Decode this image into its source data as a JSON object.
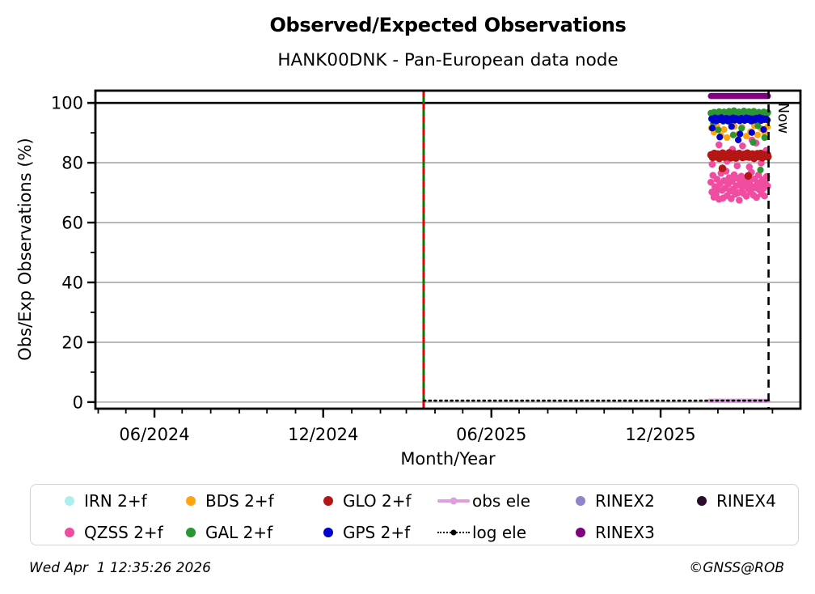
{
  "footer": {
    "timestamp": "Wed Apr  1 12:35:26 2026",
    "copyright": "©GNSS@ROB"
  },
  "chart_data": {
    "type": "scatter",
    "title": "Observed/Expected Observations",
    "subtitle": "HANK00DNK - Pan-European data node",
    "xlabel": "Month/Year",
    "ylabel": "Obs/Exp Observations (%)",
    "x_range": [
      2024.2403,
      2026.3295
    ],
    "y_range": [
      -2.2,
      104.1
    ],
    "x_ticks": [
      {
        "v": 2024.4153,
        "label": "06/2024"
      },
      {
        "v": 2024.9153,
        "label": "12/2024"
      },
      {
        "v": 2025.4137,
        "label": "06/2025"
      },
      {
        "v": 2025.9151,
        "label": "12/2025"
      }
    ],
    "x_minor_ticks": [
      2024.2486,
      2024.3306,
      2024.4973,
      2024.582,
      2024.6667,
      2024.7486,
      2024.8333,
      2025.0,
      2025.0849,
      2025.1616,
      2025.2466,
      2025.3288,
      2025.4959,
      2025.5808,
      2025.6658,
      2025.7479,
      2025.8329,
      2026.0,
      2026.0849,
      2026.1616,
      2026.2466
    ],
    "y_ticks": [
      0,
      20,
      40,
      60,
      80,
      100
    ],
    "y_minor_ticks": [
      10,
      30,
      50,
      70,
      90
    ],
    "grid_color": "#a6a6a6",
    "annotations": {
      "now_label": "Now",
      "now_line_x": 2026.235,
      "event_line_x": 2025.213,
      "event_line_colors": [
        "#007d00",
        "#e8000b"
      ],
      "ref_line_y": 100
    },
    "series": [
      {
        "name": "IRN 2+f",
        "color": "#afeeee",
        "marker": "dot",
        "points": []
      },
      {
        "name": "QZSS 2+f",
        "color": "#f04da1",
        "marker": "dot",
        "r": 4.3,
        "points": [
          [
            2026.0642,
            73.5
          ],
          [
            2026.0672,
            70.2
          ],
          [
            2026.0702,
            75.8
          ],
          [
            2026.0732,
            68.5
          ],
          [
            2026.0762,
            72.0
          ],
          [
            2026.0792,
            69.3
          ],
          [
            2026.0822,
            74.5
          ],
          [
            2026.0852,
            71.0
          ],
          [
            2026.0882,
            67.8
          ],
          [
            2026.0912,
            73.0
          ],
          [
            2026.0942,
            76.5
          ],
          [
            2026.0972,
            70.8
          ],
          [
            2026.1002,
            68.2
          ],
          [
            2026.1032,
            74.0
          ],
          [
            2026.1062,
            71.5
          ],
          [
            2026.1092,
            77.2
          ],
          [
            2026.1122,
            69.0
          ],
          [
            2026.1152,
            72.8
          ],
          [
            2026.1182,
            75.0
          ],
          [
            2026.1212,
            70.5
          ],
          [
            2026.1242,
            68.0
          ],
          [
            2026.1272,
            73.8
          ],
          [
            2026.1302,
            71.2
          ],
          [
            2026.1332,
            76.0
          ],
          [
            2026.1362,
            69.5
          ],
          [
            2026.1392,
            72.3
          ],
          [
            2026.1422,
            74.8
          ],
          [
            2026.1452,
            70.0
          ],
          [
            2026.1482,
            67.5
          ],
          [
            2026.1512,
            73.2
          ],
          [
            2026.1542,
            75.5
          ],
          [
            2026.1572,
            71.8
          ],
          [
            2026.1602,
            69.8
          ],
          [
            2026.1632,
            74.2
          ],
          [
            2026.1662,
            72.5
          ],
          [
            2026.1692,
            68.8
          ],
          [
            2026.1722,
            75.2
          ],
          [
            2026.1752,
            71.3
          ],
          [
            2026.1782,
            73.6
          ],
          [
            2026.1812,
            70.3
          ],
          [
            2026.1842,
            76.8
          ],
          [
            2026.1872,
            72.1
          ],
          [
            2026.1902,
            69.2
          ],
          [
            2026.1932,
            74.6
          ],
          [
            2026.1962,
            71.6
          ],
          [
            2026.1992,
            68.4
          ],
          [
            2026.2022,
            73.4
          ],
          [
            2026.2052,
            75.9
          ],
          [
            2026.2082,
            70.9
          ],
          [
            2026.2112,
            72.6
          ],
          [
            2026.2142,
            69.6
          ],
          [
            2026.2172,
            74.3
          ],
          [
            2026.2202,
            71.4
          ],
          [
            2026.2232,
            68.9
          ],
          [
            2026.2262,
            73.1
          ],
          [
            2026.2292,
            75.4
          ],
          [
            2026.2322,
            72.2
          ],
          [
            2026.068,
            79.5
          ],
          [
            2026.088,
            86.0
          ],
          [
            2026.098,
            78.3
          ],
          [
            2026.112,
            80.5
          ],
          [
            2026.128,
            84.5
          ],
          [
            2026.142,
            79.0
          ],
          [
            2026.158,
            85.6
          ],
          [
            2026.178,
            78.6
          ],
          [
            2026.186,
            87.6
          ],
          [
            2026.198,
            86.6
          ],
          [
            2026.213,
            79.9
          ],
          [
            2026.228,
            84.1
          ]
        ]
      },
      {
        "name": "BDS 2+f",
        "color": "#ffa510",
        "marker": "dot",
        "r": 4.1,
        "points": [
          [
            2026.0655,
            91.6
          ],
          [
            2026.0731,
            90.2
          ],
          [
            2026.0818,
            92.4
          ],
          [
            2026.0939,
            89.1
          ],
          [
            2026.1028,
            91.1
          ],
          [
            2026.1118,
            88.4
          ],
          [
            2026.1215,
            93.6
          ],
          [
            2026.1338,
            92.1
          ],
          [
            2026.1457,
            89.6
          ],
          [
            2026.1562,
            91.9
          ],
          [
            2026.1693,
            88.9
          ],
          [
            2026.1812,
            90.4
          ],
          [
            2026.1931,
            92.3
          ],
          [
            2026.2025,
            89.3
          ],
          [
            2026.2133,
            91.4
          ],
          [
            2026.2231,
            90.1
          ],
          [
            2026.2318,
            92.0
          ]
        ]
      },
      {
        "name": "GAL 2+f",
        "color": "#2a9632",
        "marker": "dot",
        "r": 4.1,
        "points": [
          [
            2026.064,
            96.6
          ],
          [
            2026.0689,
            95.8
          ],
          [
            2026.0738,
            96.9
          ],
          [
            2026.0787,
            95.3
          ],
          [
            2026.0836,
            96.4
          ],
          [
            2026.0885,
            97.1
          ],
          [
            2026.0934,
            95.6
          ],
          [
            2026.0983,
            96.2
          ],
          [
            2026.1032,
            97.0
          ],
          [
            2026.1081,
            95.4
          ],
          [
            2026.113,
            96.5
          ],
          [
            2026.1179,
            97.2
          ],
          [
            2026.1228,
            95.7
          ],
          [
            2026.1277,
            96.3
          ],
          [
            2026.1326,
            97.4
          ],
          [
            2026.1375,
            95.5
          ],
          [
            2026.1424,
            96.7
          ],
          [
            2026.1473,
            97.0
          ],
          [
            2026.1522,
            95.2
          ],
          [
            2026.1571,
            96.4
          ],
          [
            2026.162,
            97.3
          ],
          [
            2026.1669,
            95.9
          ],
          [
            2026.1718,
            96.6
          ],
          [
            2026.1767,
            97.1
          ],
          [
            2026.1816,
            95.3
          ],
          [
            2026.1865,
            96.1
          ],
          [
            2026.1914,
            97.2
          ],
          [
            2026.1963,
            95.8
          ],
          [
            2026.2012,
            96.5
          ],
          [
            2026.2061,
            96.9
          ],
          [
            2026.211,
            95.4
          ],
          [
            2026.2159,
            96.2
          ],
          [
            2026.2208,
            97.0
          ],
          [
            2026.2257,
            95.7
          ],
          [
            2026.2306,
            96.4
          ],
          [
            2026.233,
            96.8
          ],
          [
            2026.0714,
            93.2
          ],
          [
            2026.0859,
            91.0
          ],
          [
            2026.1007,
            93.8
          ],
          [
            2026.1302,
            89.3
          ],
          [
            2026.1551,
            91.5
          ],
          [
            2026.1894,
            86.8
          ],
          [
            2026.2036,
            92.3
          ],
          [
            2026.211,
            77.6
          ],
          [
            2026.2232,
            88.4
          ]
        ]
      },
      {
        "name": "GLO 2+f",
        "color": "#b41616",
        "marker": "dot",
        "r": 4.8,
        "points": [
          [
            2026.0647,
            82.6
          ],
          [
            2026.0696,
            81.8
          ],
          [
            2026.0745,
            83.1
          ],
          [
            2026.0794,
            82.0
          ],
          [
            2026.0843,
            82.9
          ],
          [
            2026.0892,
            81.5
          ],
          [
            2026.0941,
            82.4
          ],
          [
            2026.099,
            83.2
          ],
          [
            2026.1039,
            81.9
          ],
          [
            2026.1088,
            82.7
          ],
          [
            2026.1137,
            82.1
          ],
          [
            2026.1186,
            83.3
          ],
          [
            2026.1235,
            81.7
          ],
          [
            2026.1284,
            82.5
          ],
          [
            2026.1333,
            83.0
          ],
          [
            2026.1382,
            81.6
          ],
          [
            2026.1431,
            82.2
          ],
          [
            2026.148,
            83.1
          ],
          [
            2026.1529,
            82.6
          ],
          [
            2026.1578,
            81.8
          ],
          [
            2026.1627,
            82.8
          ],
          [
            2026.1676,
            82.0
          ],
          [
            2026.1725,
            83.2
          ],
          [
            2026.1774,
            81.9
          ],
          [
            2026.1823,
            82.4
          ],
          [
            2026.1872,
            82.9
          ],
          [
            2026.1921,
            81.5
          ],
          [
            2026.197,
            82.3
          ],
          [
            2026.2019,
            83.0
          ],
          [
            2026.2068,
            82.1
          ],
          [
            2026.2117,
            83.1
          ],
          [
            2026.2166,
            81.7
          ],
          [
            2026.2215,
            82.6
          ],
          [
            2026.2264,
            82.2
          ],
          [
            2026.2313,
            82.7
          ],
          [
            2026.233,
            82.0
          ],
          [
            2026.0983,
            78.1
          ],
          [
            2026.1748,
            75.6
          ]
        ]
      },
      {
        "name": "GPS 2+f",
        "color": "#0000cd",
        "marker": "dot",
        "r": 4.1,
        "points": [
          [
            2026.0661,
            94.7
          ],
          [
            2026.071,
            94.2
          ],
          [
            2026.0759,
            95.0
          ],
          [
            2026.0808,
            94.0
          ],
          [
            2026.0857,
            94.8
          ],
          [
            2026.0906,
            94.4
          ],
          [
            2026.0955,
            95.1
          ],
          [
            2026.1004,
            94.1
          ],
          [
            2026.1053,
            94.6
          ],
          [
            2026.1102,
            94.9
          ],
          [
            2026.1151,
            93.9
          ],
          [
            2026.12,
            94.7
          ],
          [
            2026.1249,
            94.3
          ],
          [
            2026.1298,
            95.0
          ],
          [
            2026.1347,
            94.2
          ],
          [
            2026.1396,
            94.8
          ],
          [
            2026.1445,
            94.5
          ],
          [
            2026.1494,
            94.0
          ],
          [
            2026.1543,
            94.9
          ],
          [
            2026.1592,
            94.6
          ],
          [
            2026.1641,
            94.1
          ],
          [
            2026.169,
            95.0
          ],
          [
            2026.1739,
            94.4
          ],
          [
            2026.1788,
            94.8
          ],
          [
            2026.1837,
            93.9
          ],
          [
            2026.1886,
            94.7
          ],
          [
            2026.1935,
            94.2
          ],
          [
            2026.1984,
            94.9
          ],
          [
            2026.2033,
            94.5
          ],
          [
            2026.2082,
            95.1
          ],
          [
            2026.2131,
            94.1
          ],
          [
            2026.218,
            94.8
          ],
          [
            2026.2229,
            94.4
          ],
          [
            2026.2278,
            94.7
          ],
          [
            2026.2315,
            94.3
          ],
          [
            2026.0683,
            91.6
          ],
          [
            2026.0905,
            88.6
          ],
          [
            2026.1253,
            92.1
          ],
          [
            2026.1452,
            87.6
          ],
          [
            2026.1504,
            89.6
          ],
          [
            2026.1853,
            90.1
          ],
          [
            2026.2204,
            91.1
          ]
        ]
      },
      {
        "name": "obs ele",
        "color": "#dda0dd",
        "marker": "line",
        "style": "line",
        "width": 5.5,
        "points": [
          [
            2026.06,
            0.4
          ],
          [
            2026.234,
            0.4
          ]
        ]
      },
      {
        "name": "log ele",
        "color": "#000000",
        "marker": "dotline",
        "style": "line",
        "width": 2.6,
        "dash": "2.2 4.5",
        "points": [
          [
            2025.213,
            0.5
          ],
          [
            2026.235,
            0.5
          ]
        ]
      },
      {
        "name": "RINEX2",
        "color": "#8f84c9",
        "marker": "dot",
        "points": []
      },
      {
        "name": "RINEX3",
        "color": "#800080",
        "marker": "dot",
        "style": "line",
        "width": 7.5,
        "points": [
          [
            2026.064,
            102.3
          ],
          [
            2026.233,
            102.3
          ]
        ]
      },
      {
        "name": "RINEX4",
        "color": "#2b0b2e",
        "marker": "dot",
        "points": []
      }
    ]
  }
}
